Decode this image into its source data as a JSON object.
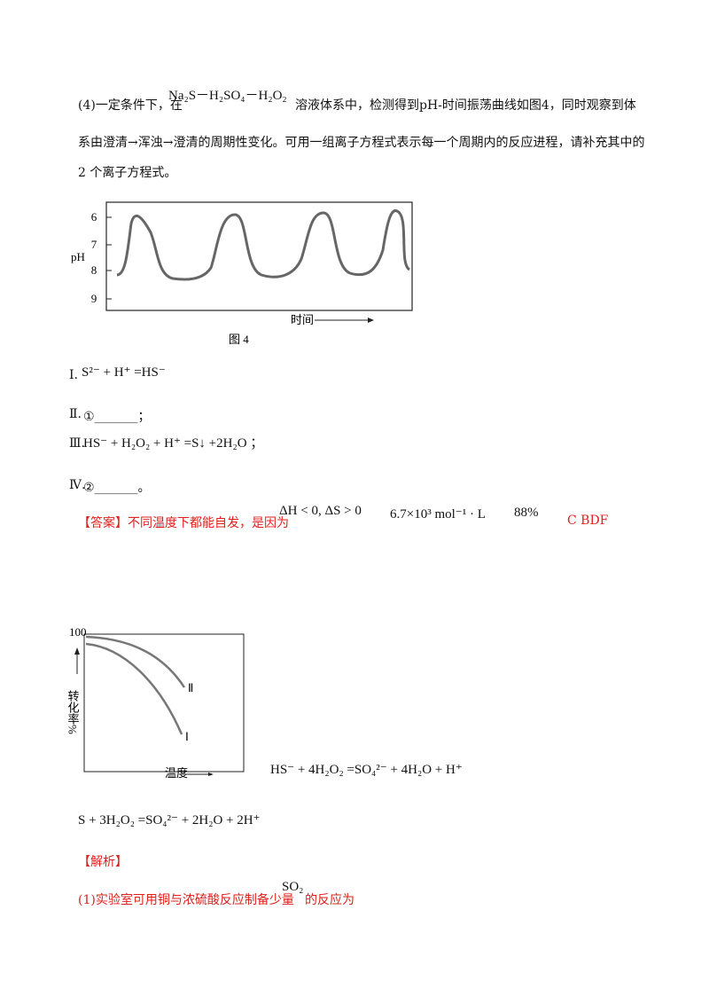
{
  "question": {
    "intro": {
      "lead": "(4)一定条件下，在",
      "formula": "Na₂S－H₂SO₄－H₂O₂",
      "tail": "溶液体系中，检测得到pH-时间振荡曲线如图4，同时观察到体"
    },
    "line2": "系由澄清→浑浊→澄清的周期性变化。可用一组离子方程式表示每一个周期内的反应进程，请补充其中的",
    "line3": "2 个离子方程式。",
    "figure4": {
      "y_label": "pH",
      "y_ticks": [
        "6",
        "7",
        "8",
        "9"
      ],
      "x_label": "时间",
      "caption": "图 4"
    },
    "steps": [
      {
        "num": "Ⅰ.",
        "text": "S²⁻ + H⁺ =HS⁻"
      },
      {
        "num": "Ⅱ.",
        "text": "①_______；"
      },
      {
        "num": "Ⅲ.",
        "text": "HS⁻ + H₂O₂ + H⁺ =S↓ +2H₂O ；"
      },
      {
        "num": "Ⅳ.",
        "text": "②_______。"
      }
    ]
  },
  "answer": {
    "label": "【答案】不同温度下都能自发，是因为",
    "cond": "ΔH < 0, ΔS > 0",
    "k": "6.7×10³ mol⁻¹ · L",
    "pct": "88%",
    "choices": "C  BDF",
    "figure": {
      "y_max": "100",
      "y_label": "转化率%",
      "x_label": "温度",
      "curve1": "Ⅱ",
      "curve2": "Ⅰ"
    },
    "eq1": "HS⁻ + 4H₂O₂ =SO₄²⁻ + 4H₂O + H⁺",
    "eq2": "S + 3H₂O₂ =SO₄²⁻ + 2H₂O + 2H⁺"
  },
  "analysis": {
    "label": "【解析】",
    "lead": "(1)实验室可用铜与浓硫酸反应制备少量",
    "formula": "SO₂",
    "tail": "的反应为"
  }
}
